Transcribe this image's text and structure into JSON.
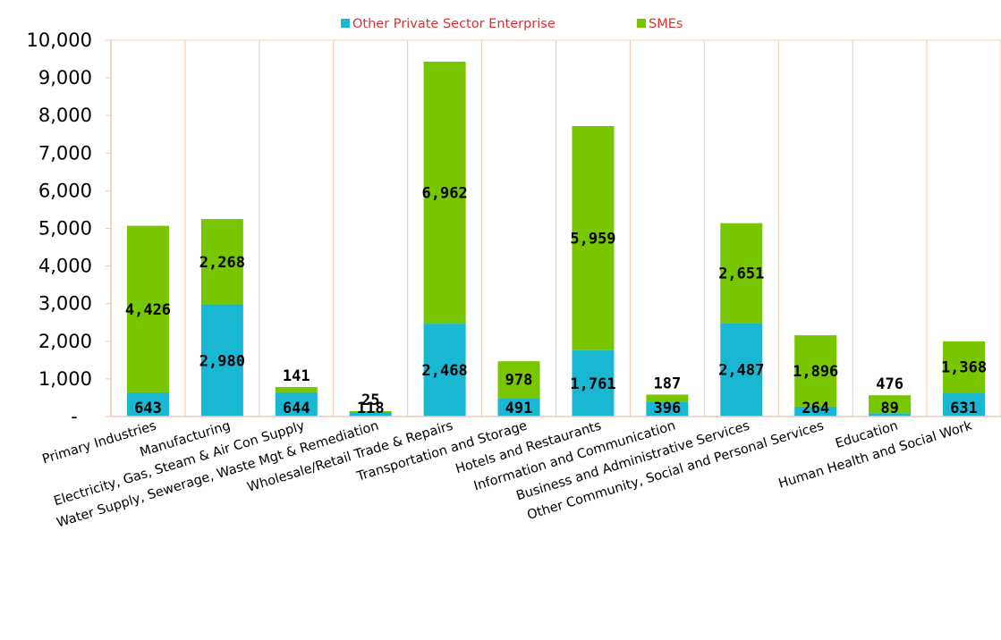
{
  "chart_data": {
    "type": "bar",
    "stacked": true,
    "categories": [
      "Primary Industries",
      "Manufacturing",
      "Electricity, Gas, Steam & Air Con Supply",
      "Water Supply, Sewerage, Waste Mgt & Remediation",
      "Wholesale/Retail Trade & Repairs",
      "Transportation and Storage",
      "Hotels and Restaurants",
      "Information and Communication",
      "Business and Administrative Services",
      "Other Community, Social and Personal Services",
      "Education",
      "Human Health and Social Work"
    ],
    "series": [
      {
        "name": "Other Private Sector Enterprise",
        "color": "#1ab7d3",
        "values": [
          643,
          2980,
          644,
          118,
          2468,
          491,
          1761,
          396,
          2487,
          264,
          89,
          631
        ],
        "labels": [
          "643",
          "2,980",
          "644",
          "118",
          "2,468",
          "491",
          "1,761",
          "396",
          "2,487",
          "264",
          "89",
          "631"
        ]
      },
      {
        "name": "SMEs",
        "color": "#77c600",
        "values": [
          4426,
          2268,
          141,
          25,
          6962,
          978,
          5959,
          187,
          2651,
          1896,
          476,
          1368
        ],
        "labels": [
          "4,426",
          "2,268",
          "141",
          "25",
          "6,962",
          "978",
          "5,959",
          "187",
          "2,651",
          "1,896",
          "476",
          "1,368"
        ]
      }
    ],
    "ylim": [
      0,
      10000
    ],
    "yticks": [
      "-",
      "1,000",
      "2,000",
      "3,000",
      "4,000",
      "5,000",
      "6,000",
      "7,000",
      "8,000",
      "9,000",
      "10,000"
    ],
    "title": "",
    "xlabel": "",
    "ylabel": "",
    "grid": "vertical",
    "legend_position": "top"
  }
}
